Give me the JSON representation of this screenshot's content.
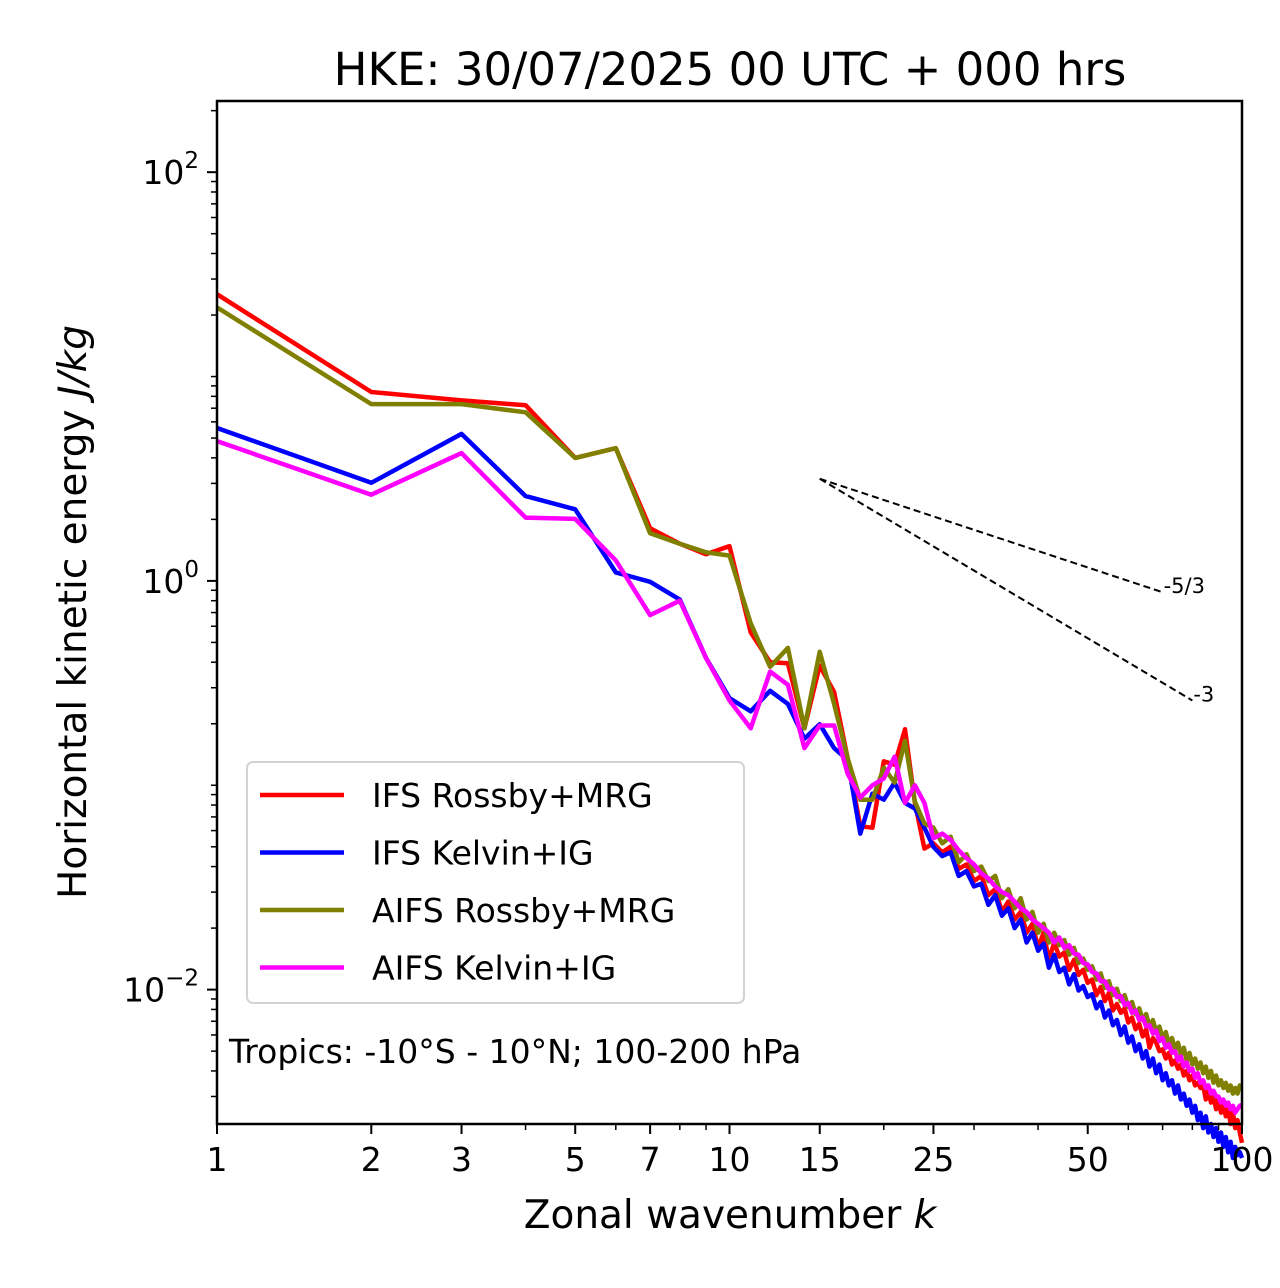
{
  "chart_data": {
    "type": "line",
    "title": "HKE: 30/07/2025 00 UTC + 000 hrs",
    "xlabel": "Zonal wavenumber",
    "xlabel_italic": "k",
    "ylabel": "Horizontal kinetic energy",
    "ylabel_italic": "J/kg",
    "xscale": "log",
    "yscale": "log",
    "xlim": [
      1,
      100
    ],
    "ylim": [
      0.0022,
      223
    ],
    "grid": false,
    "legend_position": "lower-left",
    "x_ticks": [
      {
        "value": 1,
        "label": "1"
      },
      {
        "value": 2,
        "label": "2"
      },
      {
        "value": 3,
        "label": "3"
      },
      {
        "value": 5,
        "label": "5"
      },
      {
        "value": 7,
        "label": "7"
      },
      {
        "value": 10,
        "label": "10"
      },
      {
        "value": 15,
        "label": "15"
      },
      {
        "value": 25,
        "label": "25"
      },
      {
        "value": 50,
        "label": "50"
      },
      {
        "value": 100,
        "label": "100"
      }
    ],
    "x_minor_ticks": [
      4,
      6,
      8,
      9,
      20,
      30,
      40,
      60,
      70,
      80,
      90
    ],
    "y_ticks": [
      {
        "value": 100,
        "base": "10",
        "exp": "2"
      },
      {
        "value": 1,
        "base": "10",
        "exp": "0"
      },
      {
        "value": 0.01,
        "base": "10",
        "exp": "−2"
      }
    ],
    "annotation": "Tropics: -10°S - 10°N; 100-200 hPa",
    "reference_lines": [
      {
        "label": "-5/3",
        "start": [
          15,
          3.16
        ],
        "end": [
          70,
          0.88
        ]
      },
      {
        "label": "-3",
        "start": [
          15,
          3.16
        ],
        "end": [
          80,
          0.26
        ]
      }
    ],
    "series": [
      {
        "name": "IFS Rossby+MRG",
        "color": "#ff0000",
        "x_start": 1,
        "values": [
          25.3,
          8.4,
          7.64,
          7.24,
          4.0,
          4.46,
          1.81,
          1.52,
          1.35,
          1.48,
          0.56,
          0.4,
          0.395,
          0.19,
          0.385,
          0.286,
          0.136,
          0.063,
          0.062,
          0.131,
          0.126,
          0.188,
          0.082,
          0.049,
          0.052,
          0.047,
          0.05,
          0.039,
          0.041,
          0.034,
          0.036,
          0.029,
          0.031,
          0.024,
          0.027,
          0.022,
          0.024,
          0.019,
          0.021,
          0.016,
          0.019,
          0.014,
          0.017,
          0.0145,
          0.0152,
          0.0125,
          0.014,
          0.0118,
          0.0125,
          0.0108,
          0.0112,
          0.0094,
          0.0103,
          0.0088,
          0.0096,
          0.0079,
          0.0085,
          0.0077,
          0.0081,
          0.0069,
          0.0073,
          0.0064,
          0.0068,
          0.0059,
          0.0064,
          0.0052,
          0.0058,
          0.0055,
          0.005,
          0.0051,
          0.0046,
          0.0049,
          0.0043,
          0.0045,
          0.0041,
          0.0043,
          0.0038,
          0.004,
          0.0036,
          0.0038,
          0.0034,
          0.0035,
          0.0033,
          0.0034,
          0.0029,
          0.0032,
          0.0028,
          0.003,
          0.0026,
          0.0029,
          0.0025,
          0.0027,
          0.0024,
          0.0026,
          0.0022,
          0.0025,
          0.0021,
          0.0023,
          0.002,
          0.00178
        ]
      },
      {
        "name": "IFS Kelvin+IG",
        "color": "#0000ff",
        "x_start": 1,
        "values": [
          5.6,
          3.02,
          5.24,
          2.6,
          2.24,
          1.1,
          0.99,
          0.81,
          0.42,
          0.267,
          0.23,
          0.29,
          0.25,
          0.169,
          0.199,
          0.152,
          0.133,
          0.058,
          0.091,
          0.085,
          0.103,
          0.082,
          0.077,
          0.062,
          0.05,
          0.045,
          0.047,
          0.036,
          0.038,
          0.032,
          0.033,
          0.026,
          0.029,
          0.023,
          0.025,
          0.02,
          0.022,
          0.017,
          0.019,
          0.0155,
          0.0168,
          0.0128,
          0.0148,
          0.0122,
          0.0128,
          0.0106,
          0.0119,
          0.0099,
          0.0104,
          0.0092,
          0.0095,
          0.0081,
          0.0087,
          0.0073,
          0.0079,
          0.0067,
          0.0071,
          0.006,
          0.0066,
          0.0055,
          0.0059,
          0.005,
          0.0054,
          0.0046,
          0.005,
          0.0042,
          0.0046,
          0.0039,
          0.0043,
          0.0036,
          0.0039,
          0.0034,
          0.0036,
          0.0031,
          0.0034,
          0.0029,
          0.0031,
          0.0027,
          0.0029,
          0.0025,
          0.0027,
          0.0023,
          0.0025,
          0.0021,
          0.0024,
          0.002,
          0.0022,
          0.0019,
          0.0021,
          0.0018,
          0.002,
          0.0017,
          0.0019,
          0.0016,
          0.0018,
          0.0015,
          0.0017,
          0.00155,
          0.0016,
          0.0015
        ]
      },
      {
        "name": "AIFS Rossby+MRG",
        "color": "#808000",
        "x_start": 1,
        "values": [
          21.8,
          7.33,
          7.33,
          6.68,
          4.0,
          4.46,
          1.71,
          1.52,
          1.38,
          1.33,
          0.62,
          0.38,
          0.47,
          0.19,
          0.45,
          0.25,
          0.136,
          0.085,
          0.085,
          0.122,
          0.103,
          0.165,
          0.083,
          0.065,
          0.062,
          0.052,
          0.056,
          0.042,
          0.046,
          0.038,
          0.04,
          0.034,
          0.036,
          0.028,
          0.031,
          0.025,
          0.028,
          0.022,
          0.024,
          0.019,
          0.021,
          0.017,
          0.019,
          0.0165,
          0.0175,
          0.0148,
          0.016,
          0.0135,
          0.0142,
          0.0125,
          0.013,
          0.0112,
          0.012,
          0.0102,
          0.011,
          0.0094,
          0.0101,
          0.0088,
          0.0094,
          0.0082,
          0.0087,
          0.0076,
          0.0081,
          0.0071,
          0.0076,
          0.0066,
          0.0071,
          0.0062,
          0.0066,
          0.0058,
          0.0062,
          0.0054,
          0.0058,
          0.0051,
          0.0055,
          0.0048,
          0.0052,
          0.0045,
          0.0049,
          0.0043,
          0.0046,
          0.0041,
          0.0044,
          0.0039,
          0.0042,
          0.0037,
          0.004,
          0.0035,
          0.0038,
          0.0034,
          0.0036,
          0.0033,
          0.0035,
          0.0032,
          0.0034,
          0.0031,
          0.0033,
          0.0031,
          0.0034,
          0.00336
        ]
      },
      {
        "name": "AIFS Kelvin+IG",
        "color": "#ff00ff",
        "x_start": 1,
        "values": [
          4.83,
          2.64,
          4.22,
          2.04,
          2.01,
          1.26,
          0.68,
          0.8,
          0.42,
          0.26,
          0.19,
          0.36,
          0.31,
          0.152,
          0.196,
          0.196,
          0.114,
          0.087,
          0.1,
          0.108,
          0.138,
          0.082,
          0.1,
          0.082,
          0.055,
          0.058,
          0.054,
          0.048,
          0.044,
          0.041,
          0.037,
          0.035,
          0.032,
          0.03,
          0.029,
          0.027,
          0.025,
          0.024,
          0.022,
          0.021,
          0.02,
          0.019,
          0.017,
          0.018,
          0.016,
          0.0165,
          0.015,
          0.0148,
          0.0135,
          0.0133,
          0.0122,
          0.012,
          0.011,
          0.011,
          0.01,
          0.0101,
          0.0092,
          0.0093,
          0.0084,
          0.0086,
          0.0077,
          0.0079,
          0.0071,
          0.0073,
          0.0066,
          0.0067,
          0.0061,
          0.0063,
          0.0056,
          0.0058,
          0.0052,
          0.0054,
          0.0049,
          0.005,
          0.0045,
          0.0047,
          0.0042,
          0.0044,
          0.004,
          0.0041,
          0.0037,
          0.0039,
          0.0035,
          0.0036,
          0.0033,
          0.0034,
          0.0031,
          0.0032,
          0.003,
          0.003,
          0.0028,
          0.0029,
          0.0027,
          0.0028,
          0.0026,
          0.0027,
          0.0025,
          0.0026,
          0.0027,
          0.00273
        ]
      }
    ]
  }
}
